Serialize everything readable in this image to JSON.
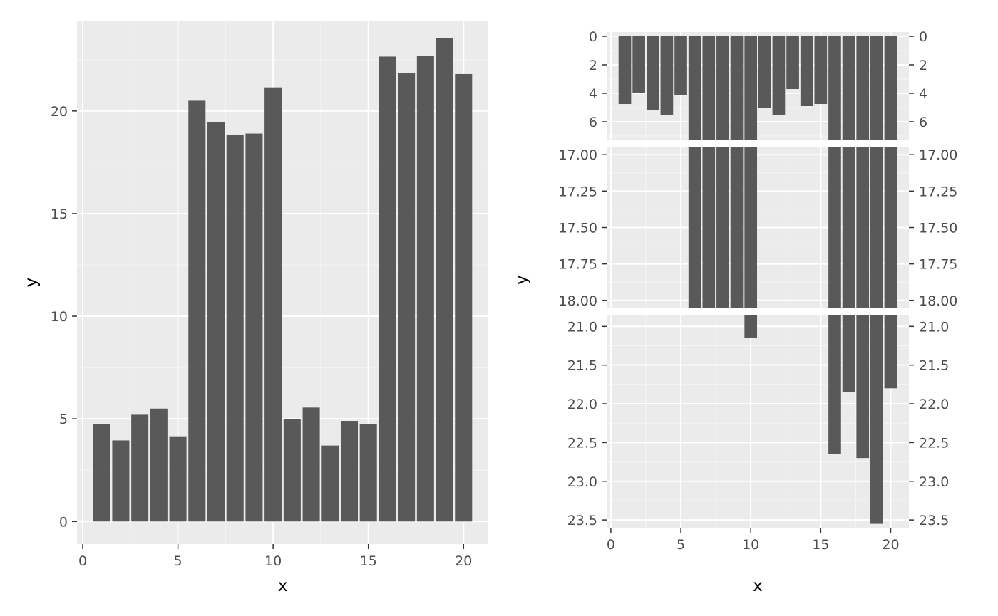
{
  "chart_data": [
    {
      "type": "bar",
      "xlabel": "x",
      "ylabel": "y",
      "xlim": [
        -0.3,
        21.3
      ],
      "ylim": [
        -1.1,
        24.4
      ],
      "x_ticks": [
        0,
        5,
        10,
        15,
        20
      ],
      "x_tick_labels": [
        "0",
        "5",
        "10",
        "15",
        "20"
      ],
      "y_ticks": [
        0,
        5,
        10,
        15,
        20
      ],
      "y_tick_labels": [
        "0",
        "5",
        "10",
        "15",
        "20"
      ],
      "grid": true,
      "x": [
        1,
        2,
        3,
        4,
        5,
        6,
        7,
        8,
        9,
        10,
        11,
        12,
        13,
        14,
        15,
        16,
        17,
        18,
        19,
        20
      ],
      "values": [
        4.75,
        3.95,
        5.2,
        5.5,
        4.15,
        20.5,
        19.45,
        18.85,
        18.9,
        21.15,
        5.0,
        5.55,
        3.7,
        4.9,
        4.75,
        22.65,
        21.85,
        22.7,
        23.55,
        21.8
      ],
      "bar_color": "#595959",
      "panel_bg": "#ebebeb"
    },
    {
      "type": "bar",
      "xlabel": "x",
      "ylabel": "y",
      "xlim": [
        -0.3,
        21.3
      ],
      "x_ticks": [
        0,
        5,
        10,
        15,
        20
      ],
      "x_tick_labels": [
        "0",
        "5",
        "10",
        "15",
        "20"
      ],
      "y_reversed": true,
      "secondary_y_axis": true,
      "grid": true,
      "x": [
        1,
        2,
        3,
        4,
        5,
        6,
        7,
        8,
        9,
        10,
        11,
        12,
        13,
        14,
        15,
        16,
        17,
        18,
        19,
        20
      ],
      "values": [
        4.75,
        3.95,
        5.2,
        5.5,
        4.15,
        20.5,
        19.45,
        18.85,
        18.9,
        21.15,
        5.0,
        5.55,
        3.7,
        4.9,
        4.75,
        22.65,
        21.85,
        22.7,
        23.55,
        21.8
      ],
      "y_segments": [
        {
          "ylim": [
            -0.3,
            7.3
          ],
          "ticks": [
            0,
            2,
            4,
            6
          ],
          "tick_labels": [
            "0",
            "2",
            "4",
            "6"
          ]
        },
        {
          "ylim": [
            16.95,
            18.05
          ],
          "ticks": [
            17,
            17.25,
            17.5,
            17.75,
            18
          ],
          "tick_labels": [
            "17.00",
            "17.25",
            "17.50",
            "17.75",
            "18.00"
          ]
        },
        {
          "ylim": [
            20.85,
            23.6
          ],
          "ticks": [
            21,
            21.5,
            22,
            22.5,
            23,
            23.5
          ],
          "tick_labels": [
            "21.0",
            "21.5",
            "22.0",
            "22.5",
            "23.0",
            "23.5"
          ]
        }
      ],
      "bar_color": "#595959",
      "panel_bg": "#ebebeb"
    }
  ]
}
